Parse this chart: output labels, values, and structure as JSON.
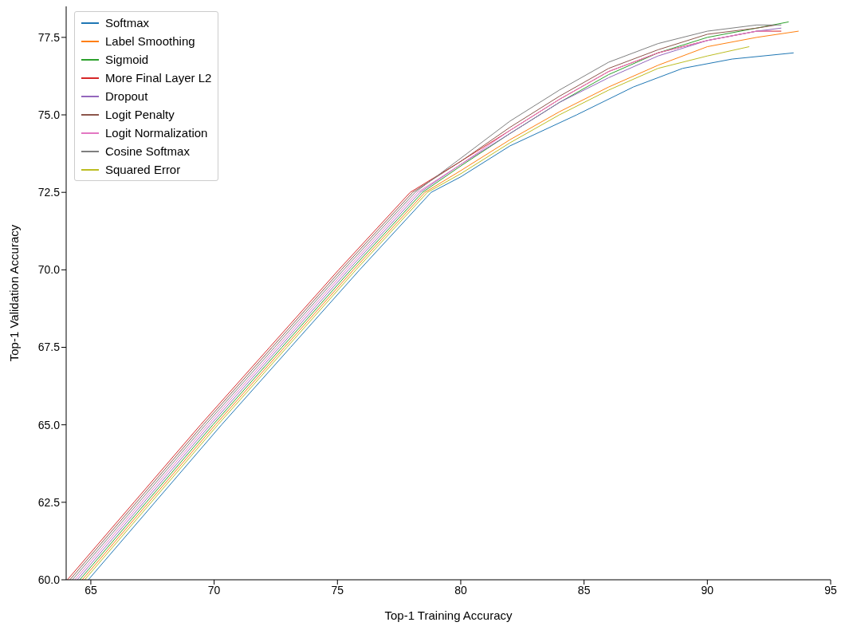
{
  "chart_data": {
    "type": "line",
    "xlabel": "Top-1 Training Accuracy",
    "ylabel": "Top-1 Validation Accuracy",
    "xlim": [
      64,
      95
    ],
    "xticks": [
      65,
      70,
      75,
      80,
      85,
      90,
      95
    ],
    "ylim": [
      60,
      78.5
    ],
    "yticks": [
      {
        "value": 60,
        "label": "60.0"
      },
      {
        "value": 62.5,
        "label": "62.5"
      },
      {
        "value": 65,
        "label": "65.0"
      },
      {
        "value": 67.5,
        "label": "67.5"
      },
      {
        "value": 70,
        "label": "70.0"
      },
      {
        "value": 72.5,
        "label": "72.5"
      },
      {
        "value": 75,
        "label": "75.0"
      },
      {
        "value": 77.5,
        "label": "77.5"
      }
    ],
    "grid": false,
    "legend": "top left",
    "marker": "none",
    "line_style": "solid",
    "series": [
      {
        "name": "Softmax",
        "color": "#1f77b4",
        "x": [
          64.9,
          67.6,
          70.3,
          73.1,
          75.9,
          78.8,
          80,
          82,
          84.7,
          87,
          89,
          91,
          93.5
        ],
        "values": [
          60,
          62.5,
          65,
          67.5,
          70,
          72.5,
          73.0,
          74.0,
          75,
          75.9,
          76.5,
          76.8,
          77.0
        ]
      },
      {
        "name": "Label Smoothing",
        "color": "#ff7f0e",
        "x": [
          64.65,
          67.35,
          70.05,
          72.85,
          75.65,
          78.55,
          80,
          82,
          84,
          86,
          88,
          90,
          92,
          93.7
        ],
        "values": [
          60,
          62.5,
          65,
          67.5,
          70,
          72.5,
          73.2,
          74.2,
          75.1,
          75.9,
          76.6,
          77.2,
          77.5,
          77.7
        ]
      },
      {
        "name": "Sigmoid",
        "color": "#2ca02c",
        "x": [
          64.55,
          67.25,
          69.95,
          72.75,
          75.55,
          78.45,
          80,
          82,
          84,
          86,
          88,
          90,
          92,
          93.3
        ],
        "values": [
          60,
          62.5,
          65,
          67.5,
          70,
          72.5,
          73.35,
          74.4,
          75.4,
          76.3,
          77,
          77.5,
          77.8,
          78.0
        ]
      },
      {
        "name": "More Final Layer L2",
        "color": "#d62728",
        "x": [
          64.05,
          66.75,
          69.45,
          72.25,
          75.05,
          77.95,
          80,
          82,
          84,
          86,
          88,
          90,
          92,
          93
        ],
        "values": [
          60,
          62.5,
          65,
          67.5,
          70,
          72.5,
          73.5,
          74.5,
          75.5,
          76.4,
          77,
          77.4,
          77.7,
          77.7
        ]
      },
      {
        "name": "Dropout",
        "color": "#9467bd",
        "x": [
          64.45,
          67.15,
          69.85,
          72.65,
          75.45,
          78.35,
          80,
          82,
          84,
          86,
          88,
          90,
          92,
          93
        ],
        "values": [
          60,
          62.5,
          65,
          67.5,
          70,
          72.5,
          73.4,
          74.4,
          75.4,
          76.2,
          76.9,
          77.4,
          77.7,
          77.8
        ]
      },
      {
        "name": "Logit Penalty",
        "color": "#8c564b",
        "x": [
          64.15,
          66.85,
          69.55,
          72.35,
          75.15,
          78.05,
          80,
          82,
          84,
          86,
          88,
          90,
          92,
          92.8
        ],
        "values": [
          60,
          62.5,
          65,
          67.5,
          70,
          72.5,
          73.5,
          74.6,
          75.6,
          76.5,
          77.1,
          77.6,
          77.8,
          77.9
        ]
      },
      {
        "name": "Logit Normalization",
        "color": "#e377c2",
        "x": [
          64.35,
          67.05,
          69.75,
          72.55,
          75.35,
          78.25,
          80,
          82,
          84,
          86,
          88,
          90,
          92,
          92.6
        ],
        "values": [
          60,
          62.5,
          65,
          67.5,
          70,
          72.5,
          73.4,
          74.5,
          75.5,
          76.4,
          77,
          77.4,
          77.7,
          77.7
        ]
      },
      {
        "name": "Cosine Softmax",
        "color": "#7f7f7f",
        "x": [
          64.25,
          66.95,
          69.65,
          72.45,
          75.25,
          78.15,
          80,
          82,
          84,
          86,
          88,
          90,
          92,
          93
        ],
        "values": [
          60,
          62.5,
          65,
          67.5,
          70,
          72.5,
          73.6,
          74.8,
          75.8,
          76.7,
          77.3,
          77.7,
          77.9,
          77.9
        ]
      },
      {
        "name": "Squared Error",
        "color": "#bcbd22",
        "x": [
          64.75,
          67.45,
          70.15,
          72.95,
          75.75,
          78.65,
          80,
          82,
          84,
          86,
          88,
          90,
          91.7
        ],
        "values": [
          60,
          62.5,
          65,
          67.5,
          70,
          72.5,
          73.1,
          74.1,
          75,
          75.8,
          76.5,
          76.9,
          77.2
        ]
      }
    ]
  }
}
